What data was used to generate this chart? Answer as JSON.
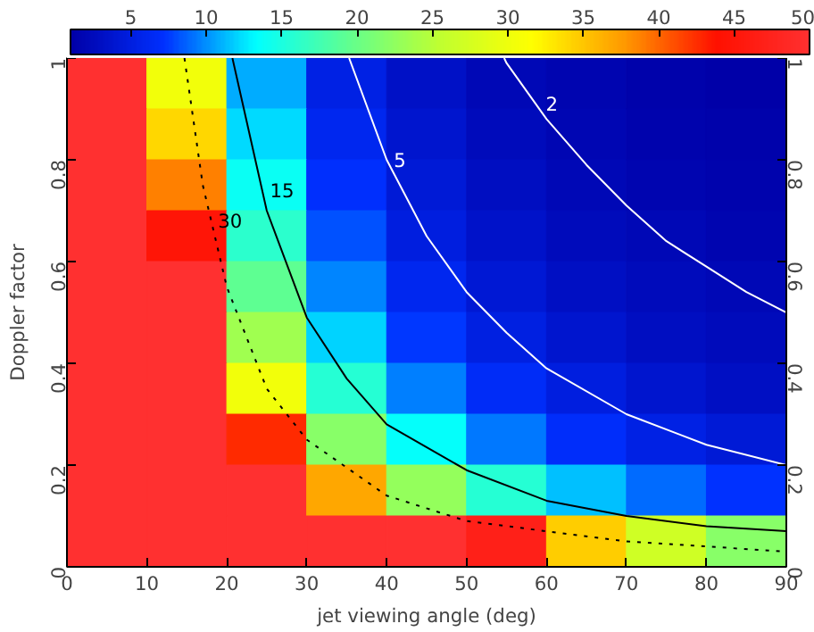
{
  "chart_data": {
    "type": "heatmap",
    "xlabel": "jet viewing angle (deg)",
    "ylabel": "Doppler factor",
    "x": [
      5,
      15,
      25,
      35,
      45,
      55,
      65,
      75,
      85
    ],
    "y": [
      0.95,
      0.85,
      0.75,
      0.65,
      0.55,
      0.45,
      0.35,
      0.25,
      0.15,
      0.05
    ],
    "xlim": [
      0,
      90
    ],
    "ylim": [
      0,
      1
    ],
    "y2lim": [
      0,
      1
    ],
    "xticks": [
      0,
      10,
      20,
      30,
      40,
      50,
      60,
      70,
      80,
      90
    ],
    "yticks": [
      0,
      0.2,
      0.4,
      0.6,
      0.8,
      1
    ],
    "y2ticks": [
      0,
      0.2,
      0.4,
      0.6,
      0.8,
      1
    ],
    "clim": [
      1,
      50
    ],
    "cticks": [
      5,
      10,
      15,
      20,
      25,
      30,
      35,
      40,
      45,
      50
    ],
    "colors": [
      "#0000a8",
      "#0030ff",
      "#00ffff",
      "#60ff90",
      "#c0ff30",
      "#ffff00",
      "#ff9900",
      "#ff1000",
      "#ff3030"
    ],
    "cells": [
      [
        50,
        30.4,
        10.8,
        5.4,
        3.2,
        2.1,
        1.6,
        1.2,
        1.1
      ],
      [
        50,
        34.1,
        12.2,
        6.1,
        3.7,
        2.5,
        1.8,
        1.5,
        1.2
      ],
      [
        50,
        38.8,
        13.9,
        7.1,
        4.3,
        2.9,
        2.1,
        1.7,
        1.4
      ],
      [
        50,
        44.8,
        16.1,
        8.2,
        5.0,
        3.4,
        2.5,
        2.0,
        1.7
      ],
      [
        50,
        50,
        19.2,
        9.8,
        6.0,
        4.1,
        3.0,
        2.4,
        2.0
      ],
      [
        50,
        50,
        23.5,
        12.1,
        7.4,
        5.1,
        3.8,
        2.9,
        2.4
      ],
      [
        50,
        50,
        30.3,
        15.7,
        9.6,
        6.6,
        4.9,
        3.8,
        3.1
      ],
      [
        50,
        50,
        42.6,
        22.0,
        13.6,
        9.3,
        6.9,
        5.4,
        4.4
      ],
      [
        50,
        50,
        50,
        36.8,
        22.7,
        15.6,
        11.5,
        9.0,
        7.3
      ],
      [
        50,
        50,
        50,
        50,
        50,
        46.9,
        34.6,
        27.0,
        21.9
      ]
    ],
    "series": [
      {
        "type": "line",
        "color": "#ffffff",
        "line_style": "solid",
        "x": [
          54.7,
          55,
          60,
          65,
          70,
          75,
          80,
          85,
          90
        ],
        "values": [
          1,
          0.99,
          0.88,
          0.79,
          0.71,
          0.64,
          0.59,
          0.54,
          0.5
        ]
      },
      {
        "type": "line",
        "color": "#ffffff",
        "line_style": "solid",
        "x": [
          35.3,
          40,
          45,
          50,
          55,
          60,
          70,
          80,
          90
        ],
        "values": [
          1,
          0.8,
          0.65,
          0.54,
          0.46,
          0.39,
          0.3,
          0.24,
          0.2
        ]
      },
      {
        "type": "line",
        "color": "#000000",
        "line_style": "solid",
        "x": [
          20.7,
          25,
          30,
          35,
          40,
          50,
          60,
          70,
          80,
          90
        ],
        "values": [
          1,
          0.7,
          0.49,
          0.37,
          0.28,
          0.19,
          0.13,
          0.1,
          0.08,
          0.07
        ]
      },
      {
        "type": "line",
        "color": "#000000",
        "line_style": "dotted",
        "x": [
          14.7,
          17,
          20,
          25,
          30,
          40,
          50,
          60,
          70,
          80,
          90
        ],
        "values": [
          1,
          0.75,
          0.55,
          0.35,
          0.25,
          0.14,
          0.09,
          0.07,
          0.05,
          0.04,
          0.03
        ]
      }
    ],
    "annotations": [
      {
        "text": "2",
        "x": 59,
        "y": 0.91
      },
      {
        "text": "5",
        "x": 40,
        "y": 0.8
      },
      {
        "text": "15",
        "x": 24.5,
        "y": 0.74
      },
      {
        "text": "30",
        "x": 18,
        "y": 0.68
      }
    ]
  }
}
